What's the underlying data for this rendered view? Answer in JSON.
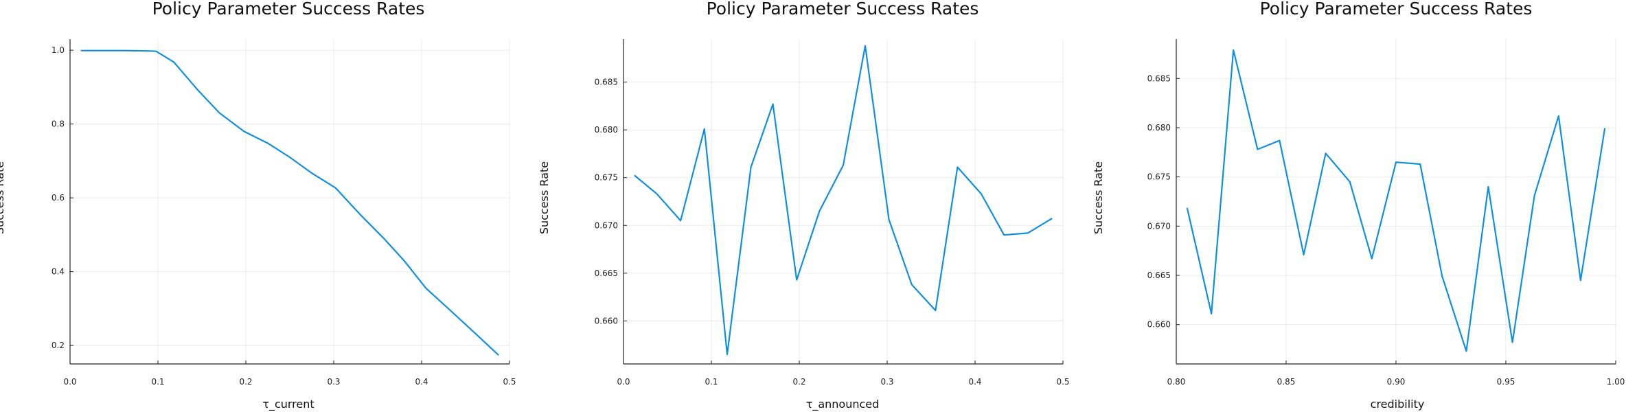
{
  "chart_data": [
    {
      "type": "line",
      "title": "Policy Parameter Success Rates",
      "xlabel": "τ_current",
      "ylabel": "Success Rate",
      "xlim": [
        0.0,
        0.5
      ],
      "ylim": [
        0.15,
        1.03
      ],
      "xticks": [
        0.0,
        0.1,
        0.2,
        0.3,
        0.4,
        0.5
      ],
      "xtick_labels": [
        "0.0",
        "0.1",
        "0.2",
        "0.3",
        "0.4",
        "0.5"
      ],
      "yticks": [
        0.2,
        0.4,
        0.6,
        0.8,
        1.0
      ],
      "ytick_labels": [
        "0.2",
        "0.4",
        "0.6",
        "0.8",
        "1.0"
      ],
      "grid": true,
      "color": "#0f8fe0",
      "series": [
        {
          "x": [
            0.013,
            0.038,
            0.063,
            0.088,
            0.098,
            0.118,
            0.145,
            0.17,
            0.198,
            0.225,
            0.25,
            0.275,
            0.302,
            0.33,
            0.357,
            0.38,
            0.405,
            0.435,
            0.46,
            0.487
          ],
          "values": [
            0.999,
            0.999,
            0.999,
            0.998,
            0.997,
            0.968,
            0.893,
            0.83,
            0.78,
            0.748,
            0.71,
            0.667,
            0.627,
            0.555,
            0.49,
            0.43,
            0.355,
            0.29,
            0.235,
            0.175
          ]
        }
      ]
    },
    {
      "type": "line",
      "title": "Policy Parameter Success Rates",
      "xlabel": "τ_announced",
      "ylabel": "Success Rate",
      "xlim": [
        0.0,
        0.5
      ],
      "ylim": [
        0.6555,
        0.6895
      ],
      "xticks": [
        0.0,
        0.1,
        0.2,
        0.3,
        0.4,
        0.5
      ],
      "xtick_labels": [
        "0.0",
        "0.1",
        "0.2",
        "0.3",
        "0.4",
        "0.5"
      ],
      "yticks": [
        0.66,
        0.665,
        0.67,
        0.675,
        0.68,
        0.685
      ],
      "ytick_labels": [
        "0.660",
        "0.665",
        "0.670",
        "0.675",
        "0.680",
        "0.685"
      ],
      "grid": true,
      "color": "#0f8fe0",
      "series": [
        {
          "x": [
            0.013,
            0.038,
            0.065,
            0.092,
            0.118,
            0.145,
            0.17,
            0.197,
            0.223,
            0.25,
            0.275,
            0.302,
            0.328,
            0.355,
            0.38,
            0.407,
            0.433,
            0.46,
            0.487
          ],
          "values": [
            0.6752,
            0.6733,
            0.6705,
            0.6801,
            0.6565,
            0.6761,
            0.6827,
            0.6643,
            0.6715,
            0.6763,
            0.6888,
            0.6706,
            0.6638,
            0.6611,
            0.6761,
            0.6733,
            0.669,
            0.6692,
            0.6707
          ]
        }
      ]
    },
    {
      "type": "line",
      "title": "Policy Parameter Success Rates",
      "xlabel": "credibility",
      "ylabel": "Success Rate",
      "xlim": [
        0.8,
        1.0
      ],
      "ylim": [
        0.656,
        0.689
      ],
      "xticks": [
        0.8,
        0.85,
        0.9,
        0.95,
        1.0
      ],
      "xtick_labels": [
        "0.80",
        "0.85",
        "0.90",
        "0.95",
        "1.00"
      ],
      "yticks": [
        0.66,
        0.665,
        0.67,
        0.675,
        0.68,
        0.685
      ],
      "ytick_labels": [
        "0.660",
        "0.665",
        "0.670",
        "0.675",
        "0.680",
        "0.685"
      ],
      "grid": true,
      "color": "#0f8fe0",
      "series": [
        {
          "x": [
            0.805,
            0.816,
            0.826,
            0.837,
            0.847,
            0.858,
            0.868,
            0.879,
            0.889,
            0.9,
            0.911,
            0.921,
            0.932,
            0.942,
            0.953,
            0.963,
            0.974,
            0.984,
            0.995
          ],
          "values": [
            0.6718,
            0.6611,
            0.6879,
            0.6778,
            0.6787,
            0.6671,
            0.6774,
            0.6745,
            0.6667,
            0.6765,
            0.6763,
            0.6649,
            0.6573,
            0.674,
            0.6582,
            0.6731,
            0.6812,
            0.6645,
            0.6799
          ]
        }
      ]
    }
  ]
}
